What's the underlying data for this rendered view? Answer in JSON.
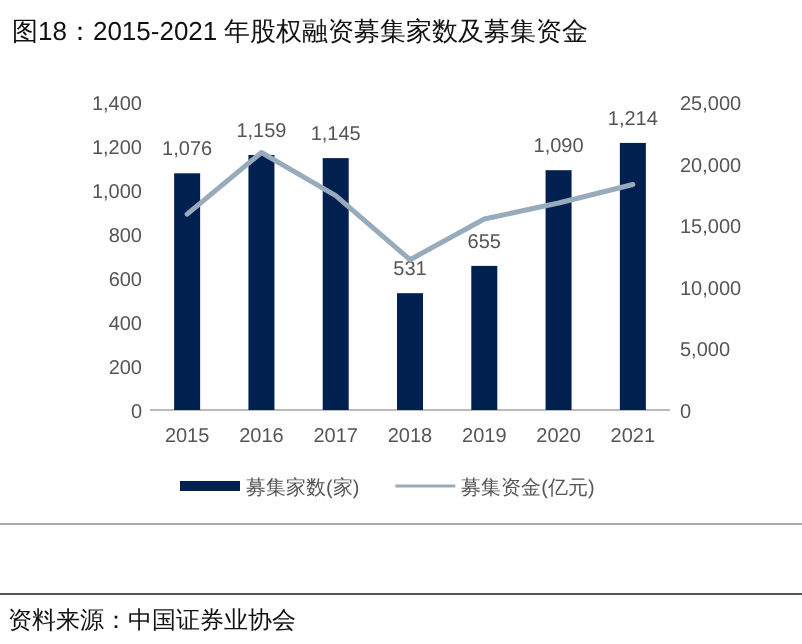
{
  "chart_data": {
    "type": "bar",
    "title": "图18：2015-2021 年股权融资募集家数及募集资金",
    "categories": [
      "2015",
      "2016",
      "2017",
      "2018",
      "2019",
      "2020",
      "2021"
    ],
    "series": [
      {
        "name": "募集家数(家)",
        "color": "#002050",
        "values": [
          1076,
          1159,
          1145,
          531,
          655,
          1090,
          1214
        ],
        "value_labels": [
          "1,076",
          "1,159",
          "1,145",
          "531",
          "655",
          "1,090",
          "1,214"
        ]
      },
      {
        "name": "募集资金(亿元)",
        "type": "line",
        "axis": "y2",
        "color": "#97abbd",
        "values": [
          15900,
          20900,
          17400,
          12200,
          15500,
          16800,
          18300
        ]
      }
    ],
    "ylim": [
      0,
      1400
    ],
    "yticks": [
      {
        "value": 0,
        "label": "0"
      },
      {
        "value": 200,
        "label": "200"
      },
      {
        "value": 400,
        "label": "400"
      },
      {
        "value": 600,
        "label": "600"
      },
      {
        "value": 800,
        "label": "800"
      },
      {
        "value": 1000,
        "label": "1,000"
      },
      {
        "value": 1200,
        "label": "1,200"
      },
      {
        "value": 1400,
        "label": "1,400"
      }
    ],
    "y2lim": [
      0,
      25000
    ],
    "y2ticks": [
      {
        "value": 0,
        "label": "0"
      },
      {
        "value": 5000,
        "label": "5,000"
      },
      {
        "value": 10000,
        "label": "10,000"
      },
      {
        "value": 15000,
        "label": "15,000"
      },
      {
        "value": 20000,
        "label": "20,000"
      },
      {
        "value": 25000,
        "label": "25,000"
      }
    ],
    "legend": "bottom",
    "grid": false,
    "marker": "none",
    "annotations": [
      "资料来源：中国证券业协会"
    ]
  }
}
